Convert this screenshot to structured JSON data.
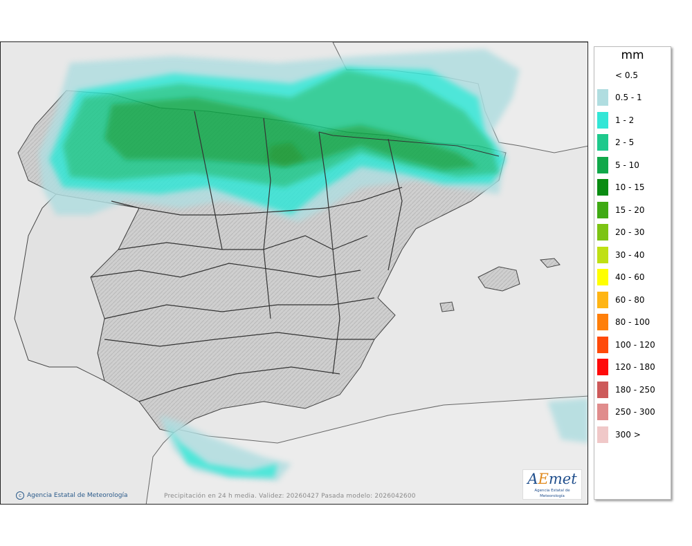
{
  "map": {
    "credit": "Agencia Estatal de Meteorología",
    "caption": "Precipitación en 24 h media. Validez: 20260427 Pasada modelo: 2026042600",
    "logo": {
      "word_a": "A",
      "word_e": "E",
      "word_rest": "met",
      "sub": "Agencia Estatal de Meteorología"
    }
  },
  "legend": {
    "title": "mm",
    "first_label": "< 0.5",
    "items": [
      {
        "label": "0.5 - 1",
        "color": "#b0dde0"
      },
      {
        "label": "1 - 2",
        "color": "#33e6d6"
      },
      {
        "label": "2 - 5",
        "color": "#1ec98c"
      },
      {
        "label": "5 - 10",
        "color": "#11a84a"
      },
      {
        "label": "10 - 15",
        "color": "#0a8c12"
      },
      {
        "label": "15 - 20",
        "color": "#3faa14"
      },
      {
        "label": "20 - 30",
        "color": "#7cc414"
      },
      {
        "label": "30 - 40",
        "color": "#bfe014"
      },
      {
        "label": "40 - 60",
        "color": "#ffff00"
      },
      {
        "label": "60 - 80",
        "color": "#ffb514"
      },
      {
        "label": "80 - 100",
        "color": "#ff7f0a"
      },
      {
        "label": "100 - 120",
        "color": "#ff4a0a"
      },
      {
        "label": "120 - 180",
        "color": "#ff0a0a"
      },
      {
        "label": "180 - 250",
        "color": "#cd5a5a"
      },
      {
        "label": "250 - 300",
        "color": "#e08c8c"
      },
      {
        "label": "300 >",
        "color": "#f0c8c8"
      }
    ]
  }
}
